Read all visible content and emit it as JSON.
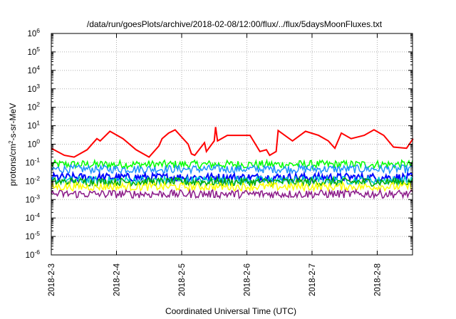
{
  "chart_data": {
    "type": "line",
    "title": "/data/run/goesPlots/archive/2018-02-08/12:00/flux/../flux/5daysMoonFluxes.txt",
    "xlabel": "Coordinated Universal Time (UTC)",
    "ylabel": "protons/cm²-s-sr-MeV",
    "ylabel_parts": {
      "prefix": "protons/cm",
      "sup": "2",
      "suffix": "-s-sr-MeV"
    },
    "yscale": "log",
    "ylim_exp": [
      -6,
      6
    ],
    "ytick_base": "10",
    "ytick_exponents": [
      "6",
      "5",
      "4",
      "3",
      "2",
      "1",
      "0",
      "-1",
      "-2",
      "-3",
      "-4",
      "-5",
      "-6"
    ],
    "xlim": [
      "2018-02-03",
      "2018-02-08 13:00"
    ],
    "xtick_labels": [
      "2018-2-3",
      "2018-2-4",
      "2018-2-5",
      "2018-2-6",
      "2018-2-7",
      "2018-2-8"
    ],
    "grid": true,
    "series": [
      {
        "color": "#ff0000",
        "x_days": [
          0,
          0.2,
          0.35,
          0.55,
          0.7,
          0.75,
          0.9,
          1.1,
          1.3,
          1.5,
          1.65,
          1.7,
          1.8,
          1.9,
          2.1,
          2.15,
          2.2,
          2.35,
          2.38,
          2.5,
          2.52,
          2.55,
          2.7,
          2.9,
          3.05,
          3.2,
          3.3,
          3.35,
          3.45,
          3.48,
          3.7,
          3.9,
          4.1,
          4.25,
          4.35,
          4.45,
          4.6,
          4.8,
          4.95,
          5.1,
          5.25,
          5.45,
          5.55
        ],
        "y": [
          0.6,
          0.25,
          0.2,
          0.5,
          2,
          1.5,
          5,
          2,
          0.5,
          0.2,
          0.8,
          2,
          4,
          6,
          1,
          0.3,
          0.25,
          1.2,
          0.4,
          1.5,
          8.5,
          1.5,
          3,
          3,
          3,
          0.4,
          0.5,
          0.25,
          0.4,
          5.5,
          1.5,
          5,
          3,
          1.5,
          0.6,
          4,
          2,
          3,
          6,
          3,
          0.7,
          0.6,
          2
        ]
      },
      {
        "color": "#00ff00",
        "level": 0.08
      },
      {
        "color": "#1e90ff",
        "level": 0.045
      },
      {
        "color": "#0000ff",
        "level": 0.016
      },
      {
        "color": "#00cccc",
        "level": 0.011
      },
      {
        "color": "#00aa00",
        "level": 0.009
      },
      {
        "color": "#ffff00",
        "level": 0.005
      },
      {
        "color": "#8b1a89",
        "level": 0.002
      }
    ]
  }
}
